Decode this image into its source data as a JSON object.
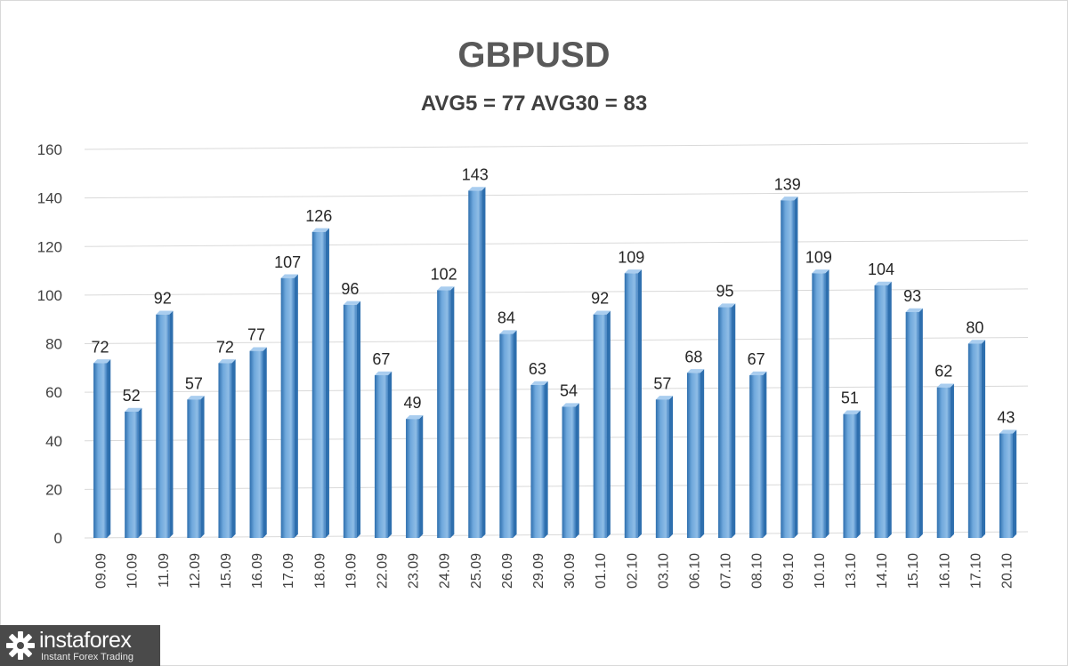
{
  "chart_data": {
    "type": "bar",
    "title": "GBPUSD",
    "subtitle": "AVG5 = 77 AVG30 = 83",
    "xlabel": "",
    "ylabel": "",
    "ylim": [
      0,
      160
    ],
    "yticks": [
      0,
      20,
      40,
      60,
      80,
      100,
      120,
      140,
      160
    ],
    "grid": true,
    "legend": "none",
    "bar_color": "#5b9bd5",
    "bar_color_dark": "#2e6fae",
    "bar_color_light": "#a9cdef",
    "categories": [
      "09.09",
      "10.09",
      "11.09",
      "12.09",
      "15.09",
      "16.09",
      "17.09",
      "18.09",
      "19.09",
      "22.09",
      "23.09",
      "24.09",
      "25.09",
      "26.09",
      "29.09",
      "30.09",
      "01.10",
      "02.10",
      "03.10",
      "06.10",
      "07.10",
      "08.10",
      "09.10",
      "10.10",
      "13.10",
      "14.10",
      "15.10",
      "16.10",
      "17.10",
      "20.10"
    ],
    "values": [
      72,
      52,
      92,
      57,
      72,
      77,
      107,
      126,
      96,
      67,
      49,
      102,
      143,
      84,
      63,
      54,
      92,
      109,
      57,
      68,
      95,
      67,
      139,
      109,
      51,
      104,
      93,
      62,
      80,
      43
    ]
  },
  "watermark": {
    "name": "instaforex",
    "tagline": "Instant Forex Trading",
    "icon": "gear-icon",
    "background": "#4a4a4a"
  }
}
